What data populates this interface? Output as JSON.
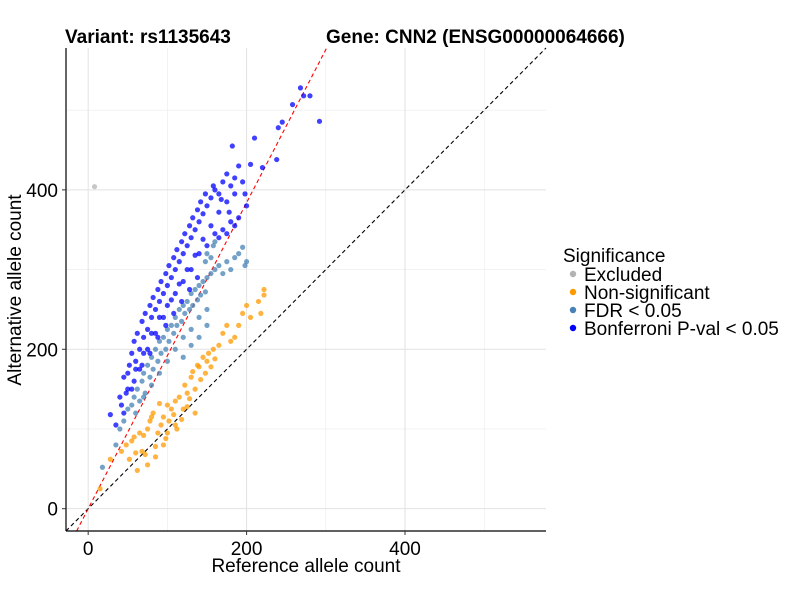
{
  "chart_data": {
    "type": "scatter",
    "title_left": "Variant: rs1135643",
    "title_right": "Gene: CNN2 (ENSG00000064666)",
    "xlabel": "Reference allele count",
    "ylabel": "Alternative allele count",
    "xlim": [
      -28,
      578
    ],
    "ylim": [
      -28,
      578
    ],
    "xticks": [
      0,
      200,
      400
    ],
    "yticks": [
      0,
      200,
      400
    ],
    "minor_grid": [
      100,
      300,
      500
    ],
    "grid": true,
    "reference_lines": [
      {
        "name": "identity",
        "slope": 1.0,
        "intercept": 0,
        "color": "#000000",
        "dash": "dashed"
      },
      {
        "name": "fit",
        "slope": 1.92,
        "intercept": 0,
        "color": "#ff0000",
        "dash": "dashed"
      }
    ],
    "legend": {
      "title": "Significance",
      "position": "right",
      "entries": [
        {
          "key": "excluded",
          "label": "Excluded",
          "color": "#b3b3b3"
        },
        {
          "key": "nonsig",
          "label": "Non-significant",
          "color": "#ff9900"
        },
        {
          "key": "fdr",
          "label": "FDR < 0.05",
          "color": "#4682b4"
        },
        {
          "key": "bonf",
          "label": "Bonferroni P-val < 0.05",
          "color": "#0000ff"
        }
      ]
    },
    "series": [
      {
        "name": "Excluded",
        "key": "excluded",
        "points": [
          [
            8,
            404
          ]
        ]
      },
      {
        "name": "Non-significant",
        "key": "nonsig",
        "points": [
          [
            15,
            25
          ],
          [
            28,
            62
          ],
          [
            42,
            72
          ],
          [
            48,
            80
          ],
          [
            52,
            62
          ],
          [
            58,
            90
          ],
          [
            62,
            48
          ],
          [
            68,
            72
          ],
          [
            72,
            68
          ],
          [
            75,
            100
          ],
          [
            78,
            110
          ],
          [
            82,
            120
          ],
          [
            85,
            78
          ],
          [
            88,
            95
          ],
          [
            92,
            105
          ],
          [
            95,
            115
          ],
          [
            98,
            88
          ],
          [
            100,
            130
          ],
          [
            102,
            110
          ],
          [
            105,
            125
          ],
          [
            108,
            118
          ],
          [
            110,
            135
          ],
          [
            112,
            100
          ],
          [
            115,
            140
          ],
          [
            118,
            112
          ],
          [
            120,
            125
          ],
          [
            122,
            155
          ],
          [
            125,
            145
          ],
          [
            128,
            138
          ],
          [
            130,
            165
          ],
          [
            132,
            172
          ],
          [
            135,
            150
          ],
          [
            138,
            180
          ],
          [
            140,
            178
          ],
          [
            142,
            162
          ],
          [
            145,
            190
          ],
          [
            148,
            170
          ],
          [
            150,
            185
          ],
          [
            152,
            195
          ],
          [
            155,
            178
          ],
          [
            158,
            200
          ],
          [
            160,
            188
          ],
          [
            165,
            205
          ],
          [
            170,
            220
          ],
          [
            175,
            230
          ],
          [
            180,
            210
          ],
          [
            185,
            215
          ],
          [
            190,
            230
          ],
          [
            195,
            245
          ],
          [
            200,
            255
          ],
          [
            205,
            240
          ],
          [
            215,
            260
          ],
          [
            222,
            275
          ],
          [
            222,
            268
          ],
          [
            218,
            245
          ],
          [
            70,
            92
          ],
          [
            80,
            115
          ],
          [
            90,
            132
          ],
          [
            55,
            85
          ],
          [
            65,
            95
          ],
          [
            100,
            95
          ],
          [
            110,
            105
          ],
          [
            125,
            128
          ],
          [
            135,
            120
          ],
          [
            95,
            80
          ],
          [
            85,
            65
          ],
          [
            75,
            55
          ],
          [
            60,
            70
          ]
        ]
      },
      {
        "name": "FDR < 0.05",
        "key": "fdr",
        "points": [
          [
            18,
            52
          ],
          [
            35,
            80
          ],
          [
            40,
            100
          ],
          [
            45,
            110
          ],
          [
            50,
            125
          ],
          [
            55,
            130
          ],
          [
            58,
            140
          ],
          [
            62,
            150
          ],
          [
            65,
            135
          ],
          [
            68,
            160
          ],
          [
            70,
            170
          ],
          [
            72,
            145
          ],
          [
            75,
            180
          ],
          [
            78,
            165
          ],
          [
            80,
            190
          ],
          [
            82,
            175
          ],
          [
            85,
            200
          ],
          [
            88,
            185
          ],
          [
            90,
            210
          ],
          [
            92,
            195
          ],
          [
            95,
            215
          ],
          [
            98,
            200
          ],
          [
            100,
            225
          ],
          [
            102,
            210
          ],
          [
            105,
            230
          ],
          [
            108,
            220
          ],
          [
            110,
            240
          ],
          [
            112,
            230
          ],
          [
            115,
            250
          ],
          [
            118,
            235
          ],
          [
            120,
            255
          ],
          [
            122,
            245
          ],
          [
            125,
            260
          ],
          [
            128,
            250
          ],
          [
            130,
            270
          ],
          [
            132,
            255
          ],
          [
            135,
            275
          ],
          [
            138,
            262
          ],
          [
            140,
            280
          ],
          [
            142,
            268
          ],
          [
            145,
            285
          ],
          [
            148,
            272
          ],
          [
            150,
            290
          ],
          [
            155,
            295
          ],
          [
            160,
            300
          ],
          [
            165,
            305
          ],
          [
            170,
            295
          ],
          [
            175,
            310
          ],
          [
            180,
            300
          ],
          [
            185,
            315
          ],
          [
            190,
            320
          ],
          [
            195,
            328
          ],
          [
            198,
            305
          ],
          [
            200,
            310
          ],
          [
            148,
            310
          ],
          [
            150,
            320
          ],
          [
            155,
            315
          ],
          [
            158,
            330
          ],
          [
            160,
            335
          ],
          [
            60,
            120
          ],
          [
            70,
            140
          ],
          [
            80,
            155
          ],
          [
            90,
            170
          ],
          [
            100,
            185
          ],
          [
            110,
            200
          ],
          [
            120,
            215
          ],
          [
            130,
            225
          ],
          [
            140,
            240
          ],
          [
            150,
            250
          ],
          [
            120,
            190
          ],
          [
            130,
            205
          ],
          [
            140,
            215
          ],
          [
            150,
            230
          ]
        ]
      },
      {
        "name": "Bonferroni P-val < 0.05",
        "key": "bonf",
        "points": [
          [
            28,
            118
          ],
          [
            40,
            140
          ],
          [
            45,
            165
          ],
          [
            50,
            150
          ],
          [
            52,
            180
          ],
          [
            55,
            195
          ],
          [
            58,
            210
          ],
          [
            60,
            175
          ],
          [
            62,
            220
          ],
          [
            65,
            200
          ],
          [
            68,
            235
          ],
          [
            70,
            215
          ],
          [
            72,
            245
          ],
          [
            75,
            225
          ],
          [
            78,
            255
          ],
          [
            80,
            240
          ],
          [
            82,
            265
          ],
          [
            85,
            250
          ],
          [
            88,
            275
          ],
          [
            90,
            260
          ],
          [
            92,
            285
          ],
          [
            95,
            270
          ],
          [
            98,
            295
          ],
          [
            100,
            280
          ],
          [
            102,
            305
          ],
          [
            105,
            290
          ],
          [
            108,
            315
          ],
          [
            110,
            300
          ],
          [
            112,
            325
          ],
          [
            115,
            310
          ],
          [
            118,
            335
          ],
          [
            120,
            320
          ],
          [
            122,
            345
          ],
          [
            125,
            330
          ],
          [
            128,
            355
          ],
          [
            130,
            340
          ],
          [
            132,
            365
          ],
          [
            135,
            350
          ],
          [
            138,
            375
          ],
          [
            140,
            360
          ],
          [
            142,
            385
          ],
          [
            145,
            370
          ],
          [
            148,
            395
          ],
          [
            150,
            380
          ],
          [
            155,
            390
          ],
          [
            158,
            405
          ],
          [
            160,
            400
          ],
          [
            165,
            395
          ],
          [
            170,
            410
          ],
          [
            175,
            420
          ],
          [
            180,
            405
          ],
          [
            185,
            415
          ],
          [
            190,
            430
          ],
          [
            198,
            395
          ],
          [
            182,
            455
          ],
          [
            205,
            432
          ],
          [
            220,
            428
          ],
          [
            210,
            465
          ],
          [
            238,
            438
          ],
          [
            245,
            485
          ],
          [
            258,
            507
          ],
          [
            268,
            528
          ],
          [
            272,
            518
          ],
          [
            280,
            518
          ],
          [
            292,
            486
          ],
          [
            240,
            478
          ],
          [
            165,
            340
          ],
          [
            170,
            350
          ],
          [
            175,
            345
          ],
          [
            180,
            360
          ],
          [
            185,
            355
          ],
          [
            150,
            330
          ],
          [
            160,
            345
          ],
          [
            140,
            320
          ],
          [
            130,
            300
          ],
          [
            120,
            285
          ],
          [
            110,
            270
          ],
          [
            100,
            255
          ],
          [
            90,
            240
          ],
          [
            80,
            220
          ],
          [
            70,
            195
          ],
          [
            60,
            185
          ],
          [
            50,
            170
          ],
          [
            42,
            130
          ],
          [
            35,
            105
          ],
          [
            45,
            120
          ],
          [
            55,
            150
          ],
          [
            65,
            175
          ],
          [
            75,
            200
          ],
          [
            85,
            220
          ],
          [
            95,
            240
          ],
          [
            105,
            262
          ],
          [
            115,
            282
          ],
          [
            125,
            300
          ],
          [
            135,
            318
          ],
          [
            145,
            338
          ],
          [
            155,
            355
          ],
          [
            165,
            372
          ],
          [
            175,
            385
          ],
          [
            185,
            395
          ],
          [
            195,
            410
          ],
          [
            200,
            380
          ],
          [
            190,
            365
          ],
          [
            178,
            372
          ],
          [
            168,
            388
          ],
          [
            138,
            290
          ],
          [
            128,
            275
          ],
          [
            118,
            260
          ],
          [
            108,
            245
          ],
          [
            98,
            230
          ],
          [
            88,
            215
          ],
          [
            78,
            195
          ],
          [
            68,
            180
          ],
          [
            58,
            160
          ],
          [
            48,
            145
          ]
        ]
      }
    ]
  }
}
